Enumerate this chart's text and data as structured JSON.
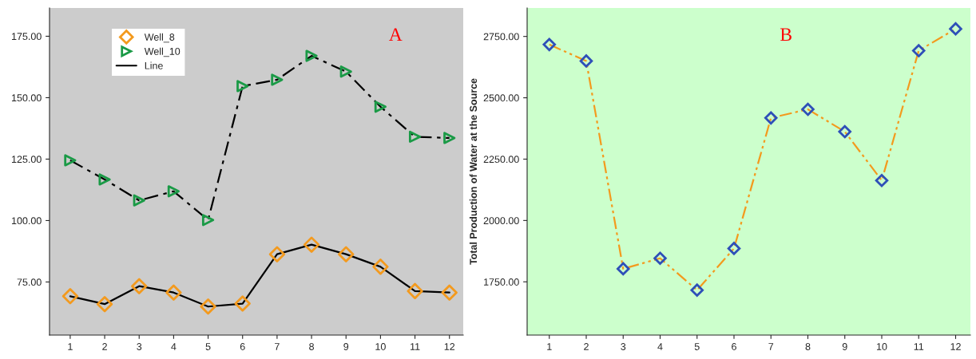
{
  "chart_data": [
    {
      "type": "scatter",
      "categories": [
        "1",
        "2",
        "3",
        "4",
        "5",
        "6",
        "7",
        "8",
        "9",
        "10",
        "11",
        "12"
      ],
      "ylim": [
        53.4,
        186.5
      ],
      "yticks": [
        {
          "value": 75,
          "label": "75.00"
        },
        {
          "value": 100,
          "label": "100.00"
        },
        {
          "value": 125,
          "label": "125.00"
        },
        {
          "value": 150,
          "label": "150.00"
        },
        {
          "value": 175,
          "label": "175.00"
        }
      ],
      "grid": false,
      "legend": "top left",
      "annotations": [
        "A"
      ],
      "series": [
        {
          "name": "Line",
          "type": "line",
          "color": "#000000",
          "line_style": "solid",
          "marker": "none",
          "values": [
            69.2,
            66.0,
            73.3,
            70.7,
            65.0,
            66.2,
            86.3,
            90.2,
            86.3,
            81.2,
            71.3,
            70.7
          ]
        },
        {
          "type": "line",
          "color": "#000000",
          "line_style": "dashdot",
          "marker": "none",
          "values": [
            124.5,
            116.7,
            108.2,
            111.9,
            100.2,
            154.7,
            157.3,
            167.0,
            160.6,
            146.3,
            134.1,
            133.6
          ]
        },
        {
          "name": "Well_8",
          "color": "#f39a1e",
          "marker": "diamond",
          "values": [
            69.2,
            66.0,
            73.3,
            70.7,
            65.0,
            66.2,
            86.3,
            90.2,
            86.3,
            81.2,
            71.3,
            70.7
          ]
        },
        {
          "name": "Well_10",
          "color": "#1a9a46",
          "marker": "triangle",
          "values": [
            124.5,
            116.7,
            108.2,
            111.9,
            100.2,
            154.7,
            157.3,
            167.0,
            160.6,
            146.3,
            134.1,
            133.6
          ]
        }
      ]
    },
    {
      "type": "line",
      "categories": [
        "1",
        "2",
        "3",
        "4",
        "5",
        "6",
        "7",
        "8",
        "9",
        "10",
        "11",
        "12"
      ],
      "ylabel": "Total Production of Water at the Source",
      "ylim": [
        1533,
        2866
      ],
      "yticks": [
        {
          "value": 1750,
          "label": "1750.00"
        },
        {
          "value": 2000,
          "label": "2000.00"
        },
        {
          "value": 2250,
          "label": "2250.00"
        },
        {
          "value": 2500,
          "label": "2500.00"
        },
        {
          "value": 2750,
          "label": "2750.00"
        }
      ],
      "grid": false,
      "legend": false,
      "annotations": [
        "B"
      ],
      "series": [
        {
          "color": "#f39a1e",
          "line_style": "dashdotdot",
          "marker": "diamond",
          "values": [
            2717,
            2650,
            1803,
            1846,
            1716,
            1886,
            2418,
            2453,
            2362,
            2163,
            2692,
            2781
          ]
        }
      ]
    }
  ]
}
